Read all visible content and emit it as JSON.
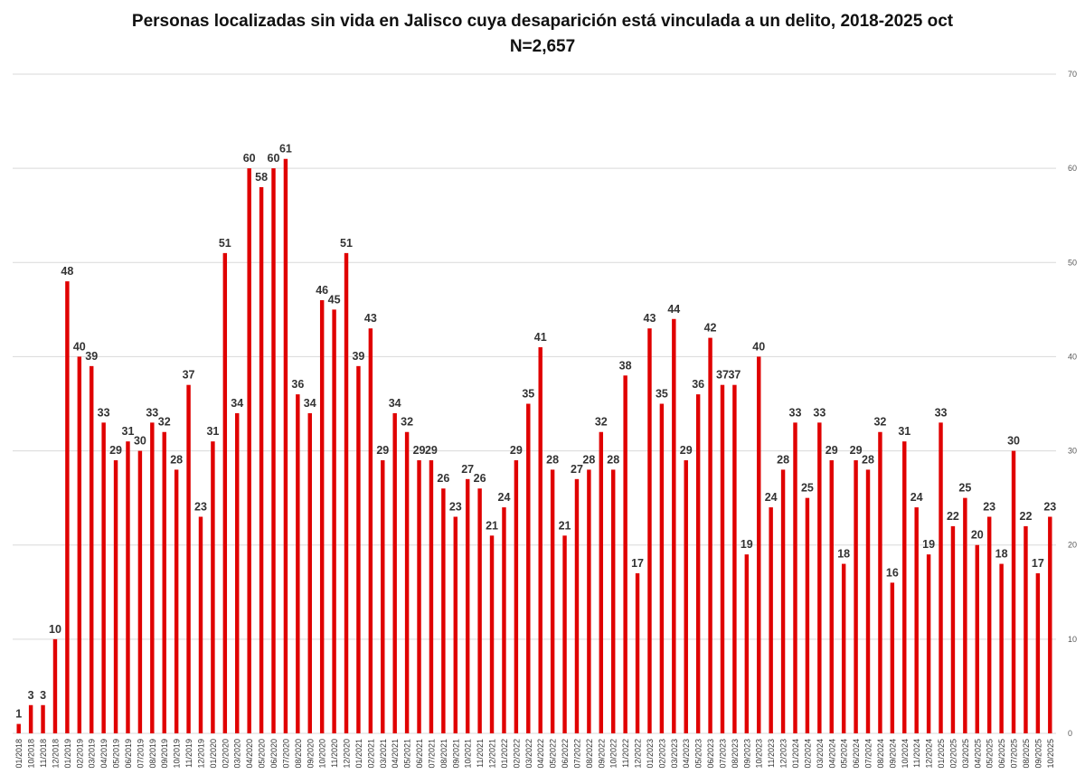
{
  "chart_data": {
    "type": "bar",
    "title": "Personas localizadas sin vida en Jalisco cuya desaparición está vinculada a un delito, 2018-2025 oct",
    "subtitle": "N=2,657",
    "xlabel": "",
    "ylabel": "",
    "ylim": [
      0,
      70
    ],
    "yticks": [
      0,
      10,
      20,
      30,
      40,
      50,
      60,
      70
    ],
    "y_axis_side": "right",
    "grid": true,
    "bar_color": "#e00000",
    "categories": [
      "01/2018",
      "10/2018",
      "11/2018",
      "12/2018",
      "01/2019",
      "02/2019",
      "03/2019",
      "04/2019",
      "05/2019",
      "06/2019",
      "07/2019",
      "08/2019",
      "09/2019",
      "10/2019",
      "11/2019",
      "12/2019",
      "01/2020",
      "02/2020",
      "03/2020",
      "04/2020",
      "05/2020",
      "06/2020",
      "07/2020",
      "08/2020",
      "09/2020",
      "10/2020",
      "11/2020",
      "12/2020",
      "01/2021",
      "02/2021",
      "03/2021",
      "04/2021",
      "05/2021",
      "06/2021",
      "07/2021",
      "08/2021",
      "09/2021",
      "10/2021",
      "11/2021",
      "12/2021",
      "01/2022",
      "02/2022",
      "03/2022",
      "04/2022",
      "05/2022",
      "06/2022",
      "07/2022",
      "08/2022",
      "09/2022",
      "10/2022",
      "11/2022",
      "12/2022",
      "01/2023",
      "02/2023",
      "03/2023",
      "04/2023",
      "05/2023",
      "06/2023",
      "07/2023",
      "08/2023",
      "09/2023",
      "10/2023",
      "11/2023",
      "12/2023",
      "01/2024",
      "02/2024",
      "03/2024",
      "04/2024",
      "05/2024",
      "06/2024",
      "07/2024",
      "08/2024",
      "09/2024",
      "10/2024",
      "11/2024",
      "12/2024",
      "01/2025",
      "02/2025",
      "03/2025",
      "04/2025",
      "05/2025",
      "06/2025",
      "07/2025",
      "08/2025",
      "09/2025",
      "10/2025"
    ],
    "values": [
      1,
      3,
      3,
      10,
      48,
      40,
      39,
      33,
      29,
      31,
      30,
      33,
      32,
      28,
      37,
      23,
      31,
      51,
      34,
      60,
      58,
      60,
      61,
      36,
      34,
      46,
      45,
      51,
      39,
      43,
      29,
      34,
      32,
      29,
      29,
      26,
      23,
      27,
      26,
      21,
      24,
      29,
      35,
      41,
      28,
      21,
      27,
      28,
      32,
      28,
      38,
      17,
      43,
      35,
      44,
      29,
      36,
      42,
      37,
      37,
      19,
      40,
      24,
      28,
      33,
      25,
      33,
      29,
      18,
      29,
      28,
      32,
      16,
      31,
      24,
      19,
      33,
      22,
      25,
      20,
      23,
      18,
      30,
      22,
      17,
      23
    ]
  }
}
